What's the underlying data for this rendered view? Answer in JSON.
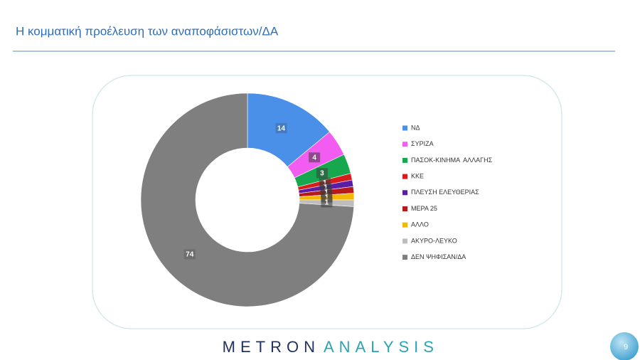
{
  "chart_data": {
    "type": "donut",
    "title": "Η κομματική προέλευση των αναποφάσιστων/ΔΑ",
    "categories": [
      "ΝΔ",
      "ΣΥΡΙΖΑ",
      "ΠΑΣΟΚ-ΚΙΝΗΜΑ  ΑΛΛΑΓΗΣ",
      "ΚΚΕ",
      "ΠΛΕΥΣΗ ΕΛΕΥΘΕΡΙΑΣ",
      "ΜΕΡΑ 25",
      "ΑΛΛΟ",
      "ΑΚΥΡΟ-ΛΕΥΚΟ",
      "ΔΕΝ ΨΗΦΙΣΑΝ/ΔΑ"
    ],
    "values": [
      14,
      4,
      3,
      1,
      1,
      1,
      1,
      1,
      74
    ],
    "colors": [
      "#4a8fe8",
      "#f35cf0",
      "#17a84f",
      "#d81c1c",
      "#5b1da3",
      "#b8191a",
      "#f5b800",
      "#bdbdbd",
      "#7f7f7f"
    ],
    "legend": "right"
  },
  "footer": {
    "brand_left": "METRON",
    "brand_right": "ANALYSIS",
    "page_number": 9
  }
}
